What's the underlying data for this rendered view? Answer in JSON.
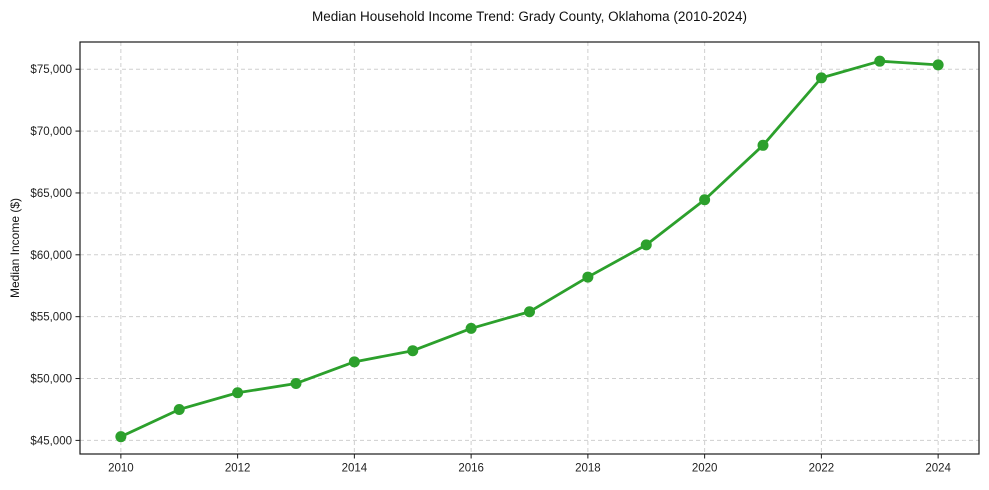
{
  "chart_data": {
    "type": "line",
    "title": "Median Household Income Trend: Grady County, Oklahoma (2010-2024)",
    "xlabel": "",
    "ylabel": "Median Income ($)",
    "series": [
      {
        "name": "Median Household Income",
        "x": [
          2010,
          2011,
          2012,
          2013,
          2014,
          2015,
          2016,
          2017,
          2018,
          2019,
          2020,
          2021,
          2022,
          2023,
          2024
        ],
        "y": [
          45300,
          47500,
          48850,
          49600,
          51350,
          52250,
          54050,
          55400,
          58200,
          60800,
          64450,
          68850,
          74300,
          75650,
          75350
        ]
      }
    ],
    "xlim": [
      2009.3,
      2024.7
    ],
    "ylim": [
      43900,
      77200
    ],
    "xticks": {
      "values": [
        2010,
        2012,
        2014,
        2016,
        2018,
        2020,
        2022,
        2024
      ],
      "labels": [
        "2010",
        "2012",
        "2014",
        "2016",
        "2018",
        "2020",
        "2022",
        "2024"
      ]
    },
    "yticks": {
      "values": [
        45000,
        50000,
        55000,
        60000,
        65000,
        70000,
        75000
      ],
      "labels": [
        "$45,000",
        "$50,000",
        "$55,000",
        "$60,000",
        "$65,000",
        "$70,000",
        "$75,000"
      ]
    },
    "grid": true,
    "grid_style": "dashed",
    "legend": "none",
    "colors": {
      "line": "#2ca02c",
      "marker": "#2ca02c",
      "grid": "#cfcfcf",
      "spine": "#1a1a1a",
      "tick_label": "#222222",
      "background": "#ffffff"
    }
  }
}
